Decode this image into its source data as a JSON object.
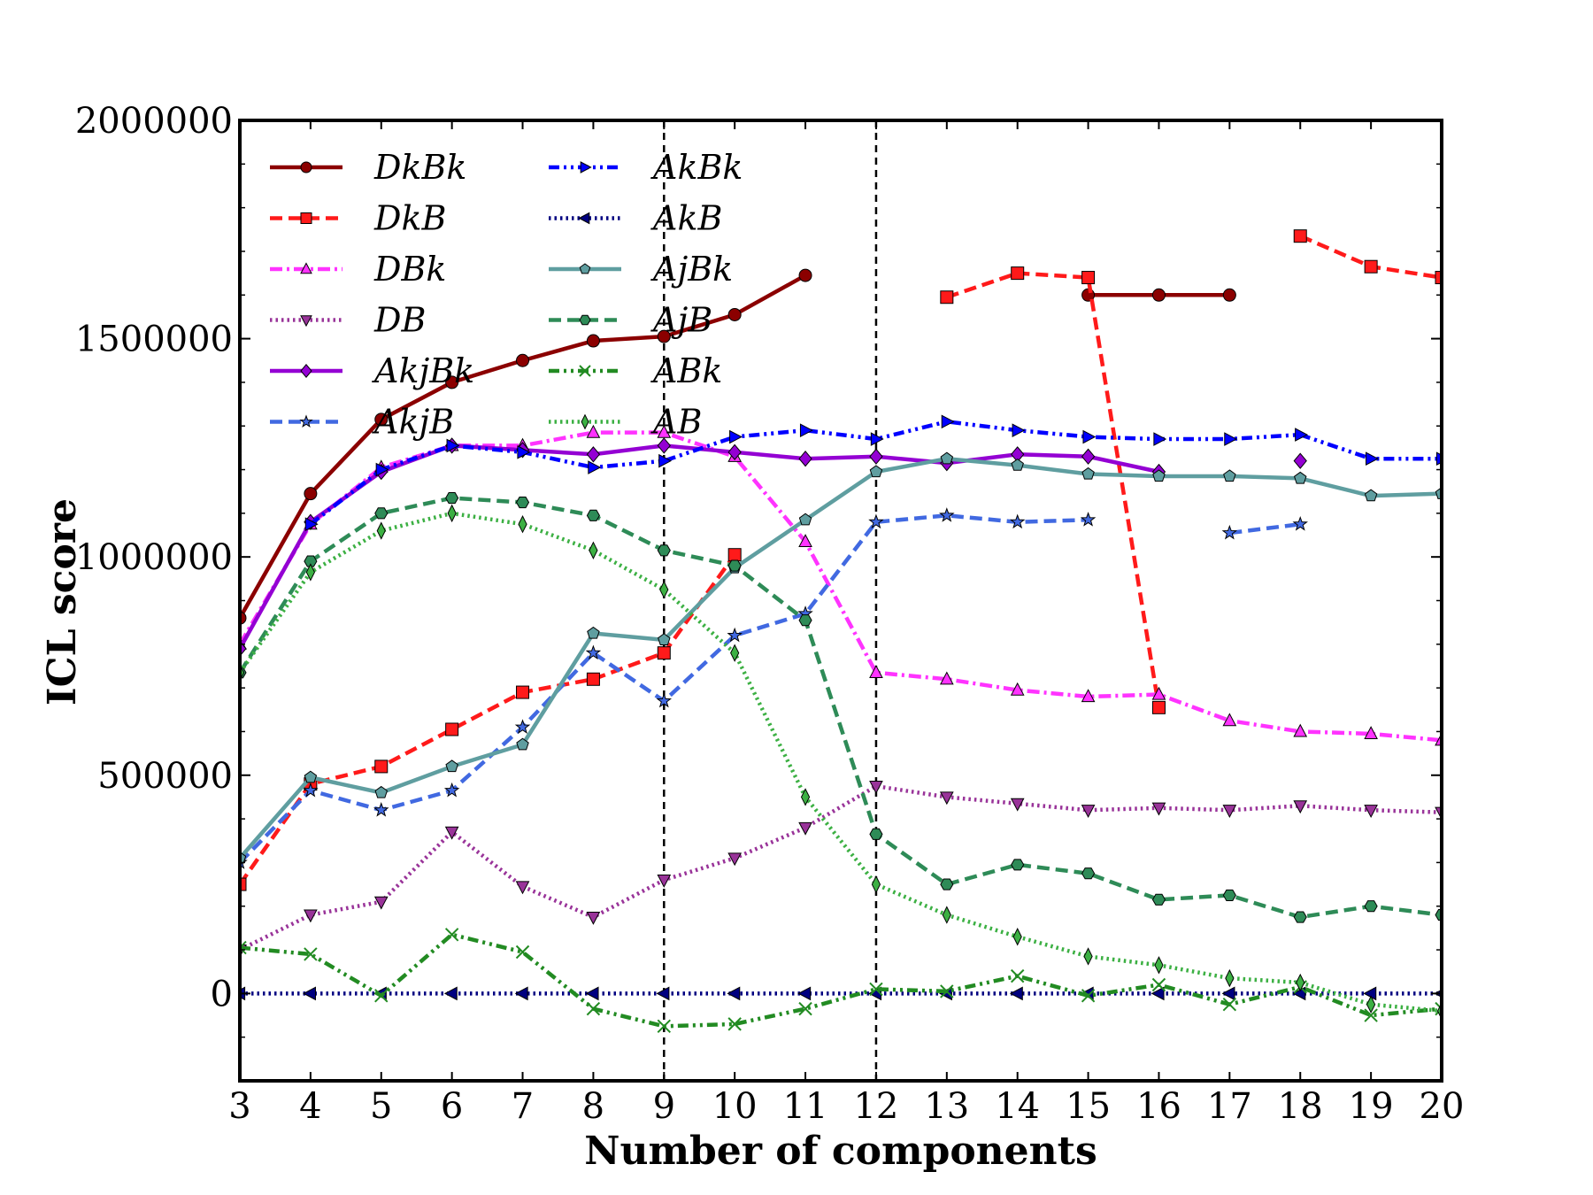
{
  "chart_data": {
    "type": "line",
    "xlabel": "Number of components",
    "ylabel": "ICL score",
    "xlim": [
      3,
      20
    ],
    "ylim": [
      -200000,
      2000000
    ],
    "xticks": [
      3,
      4,
      5,
      6,
      7,
      8,
      9,
      10,
      11,
      12,
      13,
      14,
      15,
      16,
      17,
      18,
      19,
      20
    ],
    "xtick_labels": [
      "3",
      "4",
      "5",
      "6",
      "7",
      "8",
      "9",
      "10",
      "11",
      "12",
      "13",
      "14",
      "15",
      "16",
      "17",
      "18",
      "19",
      "20"
    ],
    "yticks": [
      0,
      500000,
      1000000,
      1500000,
      2000000
    ],
    "ytick_labels": [
      "0",
      "500000",
      "1000000",
      "1500000",
      "2000000"
    ],
    "grid": false,
    "legend_position": "top-left",
    "vlines": [
      9,
      12
    ],
    "series": [
      {
        "name": "DkBk",
        "color": "#8b0000",
        "dash": "solid",
        "marker": "circle",
        "x": [
          3,
          4,
          5,
          6,
          7,
          8,
          9,
          10,
          11,
          15,
          16,
          17
        ],
        "y": [
          860000,
          1145000,
          1315000,
          1400000,
          1450000,
          1495000,
          1505000,
          1555000,
          1645000,
          1600000,
          1600000,
          1600000
        ]
      },
      {
        "name": "DkB",
        "color": "#ff1a1a",
        "dash": "dashed",
        "marker": "square",
        "x": [
          3,
          4,
          5,
          6,
          7,
          8,
          9,
          10,
          13,
          14,
          15,
          16,
          18,
          19,
          20
        ],
        "y": [
          250000,
          480000,
          520000,
          605000,
          690000,
          720000,
          780000,
          1005000,
          1595000,
          1650000,
          1640000,
          655000,
          1735000,
          1665000,
          1640000
        ]
      },
      {
        "name": "DBk",
        "color": "#ff33ff",
        "dash": "dashdot",
        "marker": "triangle-up",
        "x": [
          3,
          4,
          5,
          6,
          7,
          8,
          9,
          10,
          11,
          12,
          13,
          14,
          15,
          16,
          17,
          18,
          19,
          20
        ],
        "y": [
          800000,
          1075000,
          1205000,
          1255000,
          1255000,
          1285000,
          1285000,
          1230000,
          1035000,
          735000,
          720000,
          695000,
          680000,
          685000,
          625000,
          600000,
          595000,
          580000
        ]
      },
      {
        "name": "DB",
        "color": "#993399",
        "dash": "dotted",
        "marker": "triangle-down",
        "x": [
          3,
          4,
          5,
          6,
          7,
          8,
          9,
          10,
          11,
          12,
          13,
          14,
          15,
          16,
          17,
          18,
          19,
          20
        ],
        "y": [
          100000,
          180000,
          210000,
          370000,
          245000,
          175000,
          260000,
          310000,
          380000,
          475000,
          450000,
          435000,
          420000,
          425000,
          420000,
          430000,
          420000,
          415000
        ]
      },
      {
        "name": "AkjBk",
        "color": "#9400d3",
        "dash": "solid",
        "marker": "diamond",
        "x": [
          3,
          4,
          5,
          6,
          7,
          8,
          9,
          10,
          11,
          12,
          13,
          14,
          15,
          16,
          18
        ],
        "y": [
          790000,
          1080000,
          1195000,
          1255000,
          1245000,
          1235000,
          1255000,
          1240000,
          1225000,
          1230000,
          1215000,
          1235000,
          1230000,
          1195000,
          1220000
        ]
      },
      {
        "name": "AkjB",
        "color": "#4169e1",
        "dash": "dashed",
        "marker": "star",
        "x": [
          3,
          4,
          5,
          6,
          7,
          8,
          9,
          10,
          11,
          12,
          13,
          14,
          15,
          17,
          18
        ],
        "y": [
          300000,
          465000,
          420000,
          465000,
          610000,
          780000,
          670000,
          820000,
          870000,
          1080000,
          1095000,
          1080000,
          1085000,
          1055000,
          1075000
        ]
      },
      {
        "name": "AkBk",
        "color": "#0000ff",
        "dash": "dashdotdot",
        "marker": "triangle-right",
        "x": [
          4,
          5,
          6,
          7,
          8,
          9,
          10,
          11,
          12,
          13,
          14,
          15,
          16,
          17,
          18,
          19,
          20
        ],
        "y": [
          1075000,
          1200000,
          1255000,
          1240000,
          1205000,
          1220000,
          1275000,
          1290000,
          1270000,
          1310000,
          1290000,
          1275000,
          1270000,
          1270000,
          1280000,
          1225000,
          1225000
        ]
      },
      {
        "name": "AkB",
        "color": "#000080",
        "dash": "dotted",
        "marker": "triangle-left",
        "x": [
          3,
          4,
          5,
          6,
          7,
          8,
          9,
          10,
          11,
          12,
          13,
          14,
          15,
          16,
          17,
          18,
          19,
          20
        ],
        "y": [
          0,
          0,
          0,
          0,
          0,
          0,
          0,
          0,
          0,
          0,
          0,
          0,
          0,
          0,
          0,
          0,
          0,
          0
        ]
      },
      {
        "name": "AjBk",
        "color": "#5f9ea0",
        "dash": "solid",
        "marker": "pentagon",
        "x": [
          3,
          4,
          5,
          6,
          7,
          8,
          9,
          10,
          11,
          12,
          13,
          14,
          15,
          16,
          17,
          18,
          19,
          20
        ],
        "y": [
          310000,
          495000,
          460000,
          520000,
          570000,
          825000,
          810000,
          975000,
          1085000,
          1195000,
          1225000,
          1210000,
          1190000,
          1185000,
          1185000,
          1180000,
          1140000,
          1145000
        ]
      },
      {
        "name": "AjB",
        "color": "#2e8b57",
        "dash": "dashed",
        "marker": "hexagon",
        "x": [
          3,
          4,
          5,
          6,
          7,
          8,
          9,
          10,
          11,
          12,
          13,
          14,
          15,
          16,
          17,
          18,
          19,
          20
        ],
        "y": [
          735000,
          990000,
          1100000,
          1135000,
          1125000,
          1095000,
          1015000,
          980000,
          855000,
          365000,
          250000,
          295000,
          275000,
          215000,
          225000,
          175000,
          200000,
          180000
        ]
      },
      {
        "name": "ABk",
        "color": "#228b22",
        "dash": "dashdotdot",
        "marker": "x",
        "x": [
          3,
          4,
          5,
          6,
          7,
          8,
          9,
          10,
          11,
          12,
          13,
          14,
          15,
          16,
          17,
          18,
          19,
          20
        ],
        "y": [
          105000,
          90000,
          -5000,
          135000,
          95000,
          -35000,
          -75000,
          -70000,
          -35000,
          10000,
          5000,
          40000,
          -5000,
          20000,
          -25000,
          15000,
          -50000,
          -35000
        ]
      },
      {
        "name": "AB",
        "color": "#3cb043",
        "dash": "dotted",
        "marker": "thin-diamond",
        "x": [
          3,
          4,
          5,
          6,
          7,
          8,
          9,
          10,
          11,
          12,
          13,
          14,
          15,
          16,
          17,
          18,
          19,
          20
        ],
        "y": [
          735000,
          965000,
          1060000,
          1100000,
          1075000,
          1015000,
          925000,
          780000,
          450000,
          250000,
          180000,
          130000,
          85000,
          65000,
          35000,
          25000,
          -25000,
          -40000
        ]
      }
    ]
  }
}
